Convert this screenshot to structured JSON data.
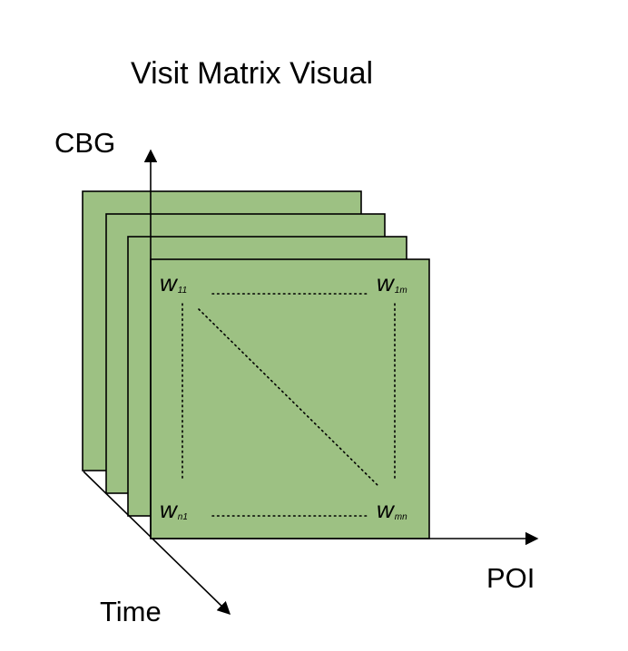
{
  "title": "Visit Matrix Visual",
  "axes": {
    "y_label": "CBG",
    "x_label": "POI",
    "z_label": "Time"
  },
  "matrix": {
    "layer_count": 4,
    "fill_color": "#9dc183",
    "stroke_color": "#000000",
    "corners": {
      "top_left": {
        "base": "w",
        "sub": "11"
      },
      "top_right": {
        "base": "w",
        "sub": "1m"
      },
      "bottom_left": {
        "base": "w",
        "sub": "n1"
      },
      "bottom_right": {
        "base": "w",
        "sub": "mn"
      }
    }
  }
}
